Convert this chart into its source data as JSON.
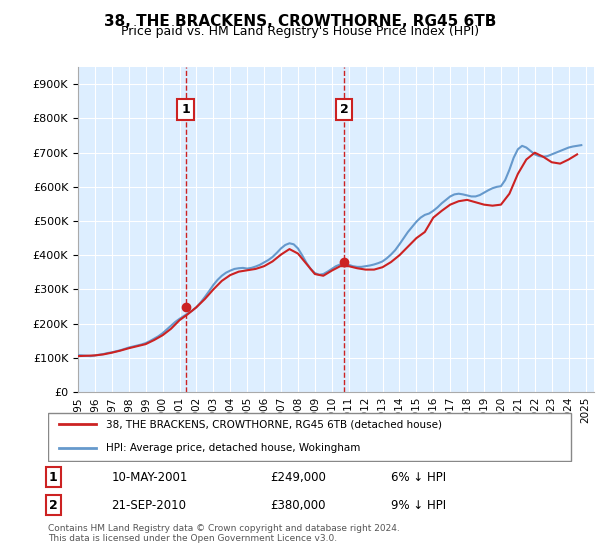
{
  "title": "38, THE BRACKENS, CROWTHORNE, RG45 6TB",
  "subtitle": "Price paid vs. HM Land Registry's House Price Index (HPI)",
  "ylabel_format": "£{0}K",
  "yticks": [
    0,
    100000,
    200000,
    300000,
    400000,
    500000,
    600000,
    700000,
    800000,
    900000
  ],
  "ytick_labels": [
    "£0",
    "£100K",
    "£200K",
    "£300K",
    "£400K",
    "£500K",
    "£600K",
    "£700K",
    "£800K",
    "£900K"
  ],
  "ylim": [
    0,
    950000
  ],
  "xlim_start": 1995.0,
  "xlim_end": 2025.5,
  "xtick_years": [
    1995,
    1996,
    1997,
    1998,
    1999,
    2000,
    2001,
    2002,
    2003,
    2004,
    2005,
    2006,
    2007,
    2008,
    2009,
    2010,
    2011,
    2012,
    2013,
    2014,
    2015,
    2016,
    2017,
    2018,
    2019,
    2020,
    2021,
    2022,
    2023,
    2024,
    2025
  ],
  "hpi_color": "#6699cc",
  "price_color": "#cc2222",
  "purchase1_x": 2001.36,
  "purchase1_y": 249000,
  "purchase1_label": "1",
  "purchase1_vline_x": 2001.36,
  "purchase2_x": 2010.72,
  "purchase2_y": 380000,
  "purchase2_label": "2",
  "purchase2_vline_x": 2010.72,
  "legend_house_label": "38, THE BRACKENS, CROWTHORNE, RG45 6TB (detached house)",
  "legend_hpi_label": "HPI: Average price, detached house, Wokingham",
  "annotation1_date": "10-MAY-2001",
  "annotation1_price": "£249,000",
  "annotation1_hpi": "6% ↓ HPI",
  "annotation2_date": "21-SEP-2010",
  "annotation2_price": "£380,000",
  "annotation2_hpi": "9% ↓ HPI",
  "footnote": "Contains HM Land Registry data © Crown copyright and database right 2024.\nThis data is licensed under the Open Government Licence v3.0.",
  "background_color": "#ddeeff",
  "plot_bg_color": "#ddeeff",
  "hpi_years": [
    1995.0,
    1995.25,
    1995.5,
    1995.75,
    1996.0,
    1996.25,
    1996.5,
    1996.75,
    1997.0,
    1997.25,
    1997.5,
    1997.75,
    1998.0,
    1998.25,
    1998.5,
    1998.75,
    1999.0,
    1999.25,
    1999.5,
    1999.75,
    2000.0,
    2000.25,
    2000.5,
    2000.75,
    2001.0,
    2001.25,
    2001.5,
    2001.75,
    2002.0,
    2002.25,
    2002.5,
    2002.75,
    2003.0,
    2003.25,
    2003.5,
    2003.75,
    2004.0,
    2004.25,
    2004.5,
    2004.75,
    2005.0,
    2005.25,
    2005.5,
    2005.75,
    2006.0,
    2006.25,
    2006.5,
    2006.75,
    2007.0,
    2007.25,
    2007.5,
    2007.75,
    2008.0,
    2008.25,
    2008.5,
    2008.75,
    2009.0,
    2009.25,
    2009.5,
    2009.75,
    2010.0,
    2010.25,
    2010.5,
    2010.75,
    2011.0,
    2011.25,
    2011.5,
    2011.75,
    2012.0,
    2012.25,
    2012.5,
    2012.75,
    2013.0,
    2013.25,
    2013.5,
    2013.75,
    2014.0,
    2014.25,
    2014.5,
    2014.75,
    2015.0,
    2015.25,
    2015.5,
    2015.75,
    2016.0,
    2016.25,
    2016.5,
    2016.75,
    2017.0,
    2017.25,
    2017.5,
    2017.75,
    2018.0,
    2018.25,
    2018.5,
    2018.75,
    2019.0,
    2019.25,
    2019.5,
    2019.75,
    2020.0,
    2020.25,
    2020.5,
    2020.75,
    2021.0,
    2021.25,
    2021.5,
    2021.75,
    2022.0,
    2022.25,
    2022.5,
    2022.75,
    2023.0,
    2023.25,
    2023.5,
    2023.75,
    2024.0,
    2024.25,
    2024.5,
    2024.75
  ],
  "hpi_values": [
    108000,
    107000,
    106000,
    105000,
    107000,
    109000,
    111000,
    114000,
    116000,
    119000,
    122000,
    126000,
    130000,
    133000,
    136000,
    139000,
    143000,
    149000,
    156000,
    163000,
    172000,
    183000,
    194000,
    205000,
    214000,
    222000,
    230000,
    238000,
    248000,
    262000,
    278000,
    295000,
    313000,
    328000,
    340000,
    349000,
    355000,
    360000,
    362000,
    363000,
    361000,
    363000,
    367000,
    372000,
    379000,
    386000,
    395000,
    407000,
    420000,
    430000,
    435000,
    432000,
    420000,
    400000,
    378000,
    360000,
    348000,
    343000,
    345000,
    352000,
    360000,
    368000,
    373000,
    375000,
    372000,
    368000,
    366000,
    366000,
    368000,
    370000,
    373000,
    377000,
    382000,
    391000,
    402000,
    415000,
    432000,
    450000,
    468000,
    483000,
    498000,
    510000,
    518000,
    522000,
    530000,
    540000,
    552000,
    562000,
    572000,
    578000,
    580000,
    578000,
    575000,
    572000,
    572000,
    576000,
    583000,
    590000,
    596000,
    600000,
    602000,
    620000,
    650000,
    685000,
    710000,
    720000,
    715000,
    705000,
    695000,
    690000,
    688000,
    690000,
    695000,
    700000,
    705000,
    710000,
    715000,
    718000,
    720000,
    722000
  ],
  "price_years": [
    1995.0,
    1995.5,
    1996.0,
    1996.5,
    1997.0,
    1997.5,
    1998.0,
    1998.5,
    1999.0,
    1999.5,
    2000.0,
    2000.5,
    2001.0,
    2001.5,
    2002.0,
    2002.5,
    2003.0,
    2003.5,
    2004.0,
    2004.5,
    2005.0,
    2005.5,
    2006.0,
    2006.5,
    2007.0,
    2007.5,
    2008.0,
    2008.5,
    2009.0,
    2009.5,
    2010.0,
    2010.5,
    2011.0,
    2011.5,
    2012.0,
    2012.5,
    2013.0,
    2013.5,
    2014.0,
    2014.5,
    2015.0,
    2015.5,
    2016.0,
    2016.5,
    2017.0,
    2017.5,
    2018.0,
    2018.5,
    2019.0,
    2019.5,
    2020.0,
    2020.5,
    2021.0,
    2021.5,
    2022.0,
    2022.5,
    2023.0,
    2023.5,
    2024.0,
    2024.5
  ],
  "price_values": [
    105000,
    106000,
    107000,
    110000,
    115000,
    121000,
    128000,
    134000,
    140000,
    152000,
    166000,
    185000,
    210000,
    228000,
    248000,
    272000,
    300000,
    325000,
    342000,
    352000,
    356000,
    360000,
    368000,
    382000,
    402000,
    418000,
    405000,
    375000,
    345000,
    340000,
    355000,
    368000,
    368000,
    362000,
    358000,
    358000,
    365000,
    380000,
    400000,
    425000,
    450000,
    468000,
    510000,
    530000,
    548000,
    558000,
    562000,
    555000,
    548000,
    545000,
    548000,
    580000,
    638000,
    680000,
    700000,
    688000,
    672000,
    668000,
    680000,
    695000
  ]
}
